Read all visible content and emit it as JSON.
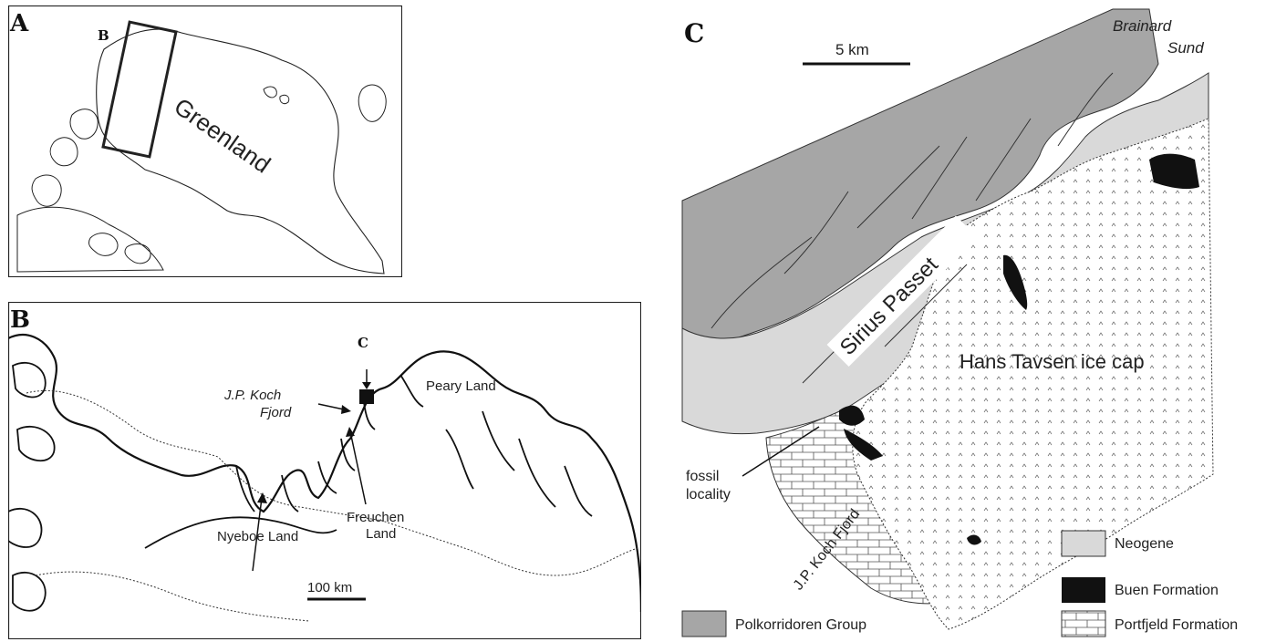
{
  "panel_a": {
    "letter": "A",
    "inset_letter": "B",
    "region": "Greenland"
  },
  "panel_b": {
    "letter": "B",
    "inset_letter": "C",
    "places": {
      "koch_line1": "J.P. Koch",
      "koch_line2": "Fjord",
      "peary": "Peary Land",
      "freuchen_line1": "Freuchen",
      "freuchen_line2": "Land",
      "nyeboe": "Nyeboe Land"
    },
    "scale": "100 km"
  },
  "panel_c": {
    "letter": "C",
    "scale": "5 km",
    "places": {
      "brainard_line1": "Brainard",
      "brainard_line2": "Sund",
      "sirius": "Sirius Passet",
      "icecap": "Hans Tavsen ice cap",
      "fossil_line1": "fossil",
      "fossil_line2": "locality",
      "fjord": "J.P. Koch Fjord"
    },
    "legend": [
      {
        "label": "Neogene",
        "fill": "#d9d9d9"
      },
      {
        "label": "Buen Formation",
        "fill": "#111111"
      },
      {
        "label": "Portfjeld Formation",
        "fill": "brick"
      },
      {
        "label": "Polkorridoren Group",
        "fill": "#a6a6a6"
      }
    ]
  }
}
